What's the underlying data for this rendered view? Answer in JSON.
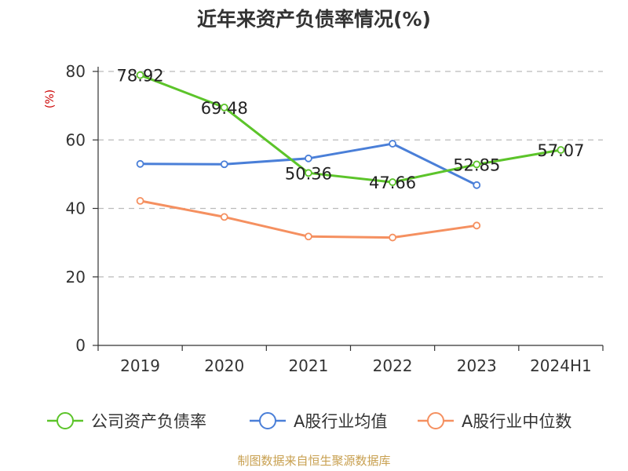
{
  "chart_data": {
    "type": "line",
    "title": "近年来资产负债率情况(%)",
    "ylabel": "(%)",
    "xlabel": "",
    "ylim": [
      0,
      80
    ],
    "yticks": [
      0,
      20,
      40,
      60,
      80
    ],
    "grid": true,
    "legend_position": "bottom",
    "categories": [
      "2019",
      "2020",
      "2021",
      "2022",
      "2023",
      "2024H1"
    ],
    "series": [
      {
        "name": "公司资产负债率",
        "color": "#5cc42a",
        "values": [
          78.92,
          69.48,
          50.36,
          47.66,
          52.85,
          57.07
        ],
        "labels": [
          "78.92",
          "69.48",
          "50.36",
          "47.66",
          "52.85",
          "57.07"
        ]
      },
      {
        "name": "A股行业均值",
        "color": "#4a7fd8",
        "values": [
          53.0,
          52.9,
          54.6,
          58.9,
          46.8,
          null
        ]
      },
      {
        "name": "A股行业中位数",
        "color": "#f59060",
        "values": [
          42.2,
          37.5,
          31.8,
          31.5,
          35.0,
          null
        ]
      }
    ]
  },
  "footer": {
    "source": "制图数据来自恒生聚源数据库"
  }
}
